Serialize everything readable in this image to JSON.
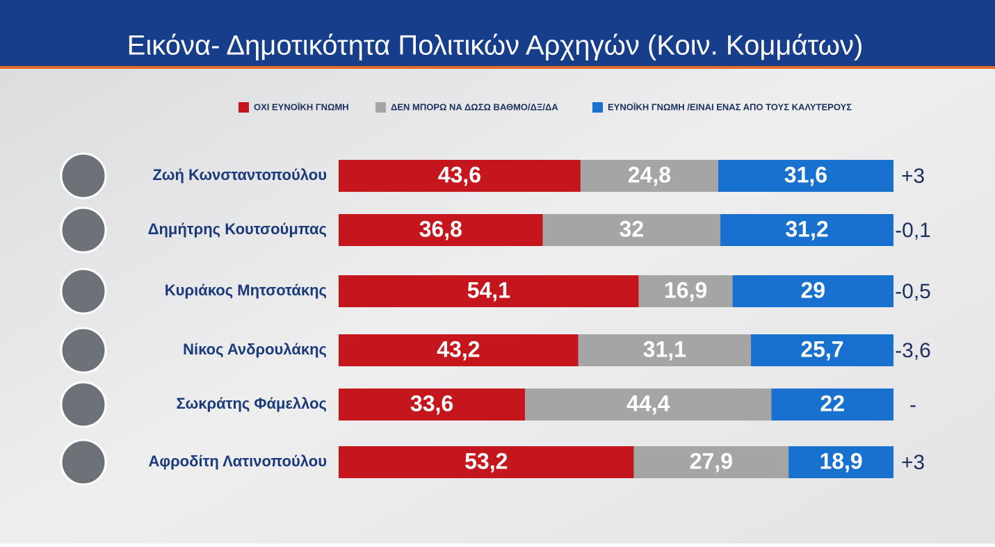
{
  "chart_data": {
    "type": "bar",
    "orientation": "horizontal",
    "stacked": true,
    "title": "Εικόνα- Δημοτικότητα Πολιτικών Αρχηγών (Κοιν. Κομμάτων)",
    "categories": [
      "Ζωή Κωνσταντοπούλου",
      "Δημήτρης Κουτσούμπας",
      "Κυριάκος Μητσοτάκης",
      "Νίκος Ανδρουλάκης",
      "Σωκράτης Φάμελλος",
      "Αφροδίτη Λατινοπούλου"
    ],
    "series": [
      {
        "name": "ΟΧΙ ΕΥΝΟΪΚΗ ΓΝΩΜΗ",
        "color": "#c4161c",
        "values": [
          43.6,
          36.8,
          54.1,
          43.2,
          33.6,
          53.2
        ],
        "value_labels": [
          "43,6",
          "36,8",
          "54,1",
          "43,2",
          "33,6",
          "53,2"
        ]
      },
      {
        "name": "ΔΕΝ ΜΠΟΡΩ ΝΑ ΔΩΣΩ ΒΑΘΜΟ/ΔΞ/ΔΑ",
        "color": "#a5a5a5",
        "values": [
          24.8,
          32,
          16.9,
          31.1,
          44.4,
          27.9
        ],
        "value_labels": [
          "24,8",
          "32",
          "16,9",
          "31,1",
          "44,4",
          "27,9"
        ]
      },
      {
        "name": "ΕΥΝΟΪΚΗ ΓΝΩΜΗ /ΕΙΝΑΙ ΕΝΑΣ ΑΠΟ ΤΟΥΣ ΚΑΛΥΤΕΡΟΥΣ",
        "color": "#1870cf",
        "values": [
          31.6,
          31.2,
          29,
          25.7,
          22,
          18.9
        ],
        "value_labels": [
          "31,6",
          "31,2",
          "29",
          "25,7",
          "22",
          "18,9"
        ]
      }
    ],
    "annotations": [
      "+3",
      "-0,1",
      "-0,5",
      "-3,6",
      "-",
      "+3"
    ],
    "xlim": [
      0,
      100
    ]
  }
}
